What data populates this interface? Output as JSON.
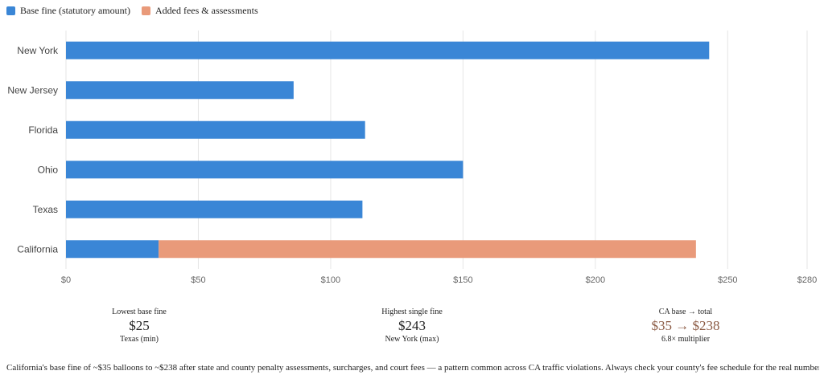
{
  "chart_data": {
    "type": "bar",
    "orientation": "horizontal",
    "stacked": true,
    "categories": [
      "New York",
      "New Jersey",
      "Florida",
      "Ohio",
      "Texas",
      "California"
    ],
    "series": [
      {
        "name": "Base fine (statutory amount)",
        "color": "#3a86d6",
        "values": [
          243,
          86,
          113,
          150,
          112,
          35
        ]
      },
      {
        "name": "Added fees & assessments",
        "color": "#e99a7a",
        "values": [
          0,
          0,
          0,
          0,
          0,
          203
        ]
      }
    ],
    "xlim": [
      0,
      280
    ],
    "xticks": [
      0,
      50,
      100,
      150,
      200,
      250,
      280
    ],
    "xtick_labels": [
      "$0",
      "$50",
      "$100",
      "$150",
      "$200",
      "$250",
      "$280"
    ],
    "grid": true,
    "legend_position": "top-left",
    "title": "",
    "xlabel": "",
    "ylabel": ""
  },
  "stats": [
    {
      "label": "Lowest base fine",
      "value": "$25",
      "sub": "Texas (min)",
      "accent": false
    },
    {
      "label": "Highest single fine",
      "value": "$243",
      "sub": "New York (max)",
      "accent": false
    },
    {
      "label": "CA base → total",
      "value": "$35 → $238",
      "sub": "6.8× multiplier",
      "accent": true
    }
  ],
  "footnote": "California's base fine of ~$35 balloons to ~$238 after state and county penalty assessments, surcharges, and court fees — a pattern common across CA traffic violations. Always check your county's fee schedule for the real number."
}
